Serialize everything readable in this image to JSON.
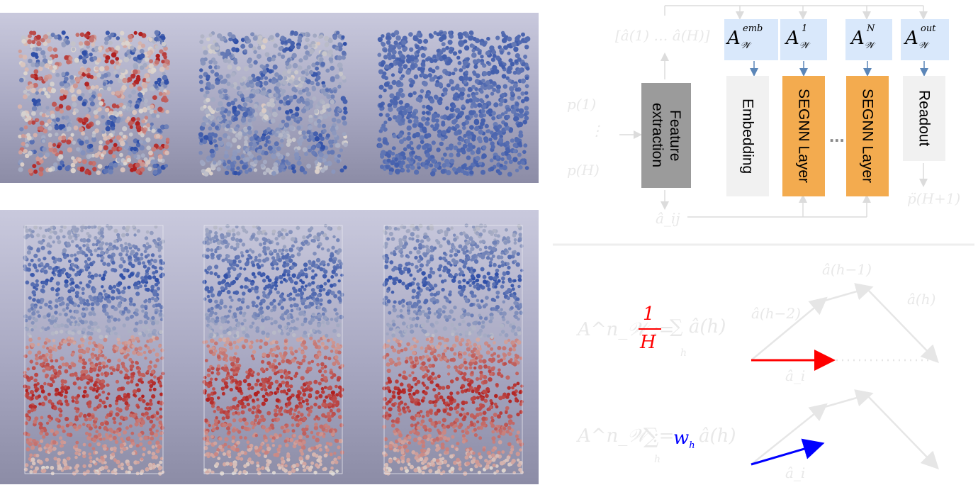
{
  "colors": {
    "cold": "#2f4fa8",
    "warm": "#b01f1f",
    "feature_box": "#9b9b9b",
    "segnn_box": "#f3ab4f",
    "light_box": "#f1f1f1",
    "a_box": "#d9e8fb",
    "arrow_blue": "#5b86b8",
    "avg_arrow": "#ff0000",
    "weighted_arrow": "#0000ff"
  },
  "blocks": {
    "feature": "Feature\nextraction",
    "embedding": "Embedding",
    "segnn1": "SEGNN Layer",
    "segnn2": "SEGNN Layer",
    "readout": "Readout",
    "dots": "..."
  },
  "a_labels": {
    "base": "A",
    "sub": "𝒲",
    "emb": "emb",
    "one": "1",
    "n": "N",
    "out": "out"
  },
  "faint_labels": {
    "history": "[â(1) … â(H)]",
    "input_top": "p(1)",
    "input_dots": "⋮",
    "input_bot": "p(H)",
    "edge_attr": "â_ij",
    "output": "p̈(H+1)"
  },
  "formulas": {
    "avg_lhs": "A^n_𝒲 :=",
    "avg_num": "1",
    "avg_den": "H",
    "avg_rest": "∑ â(h)",
    "avg_sum_index": "h",
    "weighted_lhs": "A^n_𝒲 :=",
    "weighted_sum": "∑",
    "weighted_w": "w",
    "weighted_w_sub": "h",
    "weighted_rest": "â(h)",
    "weighted_sum_index": "h"
  },
  "vector_labels": {
    "h_minus_1": "â(h−1)",
    "h_minus_2": "â(h−2)",
    "h": "â(h)",
    "ai_top": "â_i",
    "ai_bot": "â_i"
  }
}
